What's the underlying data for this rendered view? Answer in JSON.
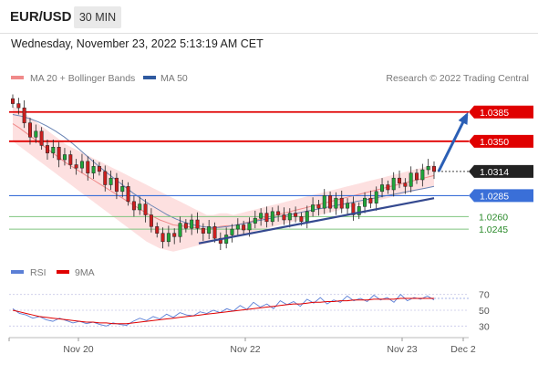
{
  "header": {
    "symbol": "EUR/USD",
    "timeframe": "30 MIN",
    "datetime": "Wednesday, November 23, 2022 5:13:19 AM CET"
  },
  "legend": {
    "ma20_label": "MA 20 + Bollinger Bands",
    "ma50_label": "MA 50",
    "copyright": "Research © 2022 Trading Central",
    "ma20_color": "#f08a8a",
    "ma50_color": "#2f5aa0"
  },
  "rsi_legend": {
    "rsi_label": "RSI",
    "ma9_label": "9MA",
    "rsi_color": "#5b7fd6",
    "ma9_color": "#e00000"
  },
  "chart_data": [
    {
      "type": "candlestick",
      "title": "",
      "ylim": [
        1.0208,
        1.0412
      ],
      "x_ticks": [
        "Nov 20",
        "Nov 22",
        "Nov 23",
        "Dec 2"
      ],
      "levels": [
        {
          "value": "1.0385",
          "kind": "resistance",
          "label_style": "red-box",
          "color": "#e00000"
        },
        {
          "value": "1.0350",
          "kind": "resistance",
          "label_style": "red-box",
          "color": "#e00000"
        },
        {
          "value": "1.0314",
          "kind": "last-price",
          "label_style": "dark-box",
          "color": "#222222"
        },
        {
          "value": "1.0285",
          "kind": "pivot",
          "label_style": "blue-box",
          "color": "#3a6fd8"
        },
        {
          "value": "1.0260",
          "kind": "support",
          "label_style": "green-text",
          "color": "#2a8a2a"
        },
        {
          "value": "1.0245",
          "kind": "support",
          "label_style": "green-text",
          "color": "#2a8a2a"
        }
      ],
      "candles_close": [
        1.0395,
        1.039,
        1.0372,
        1.0355,
        1.0362,
        1.0345,
        1.0336,
        1.0343,
        1.0328,
        1.0334,
        1.0322,
        1.0318,
        1.0326,
        1.0312,
        1.032,
        1.0314,
        1.0298,
        1.0306,
        1.029,
        1.0296,
        1.0278,
        1.0268,
        1.0275,
        1.0262,
        1.0248,
        1.024,
        1.023,
        1.024,
        1.0236,
        1.0252,
        1.0246,
        1.0256,
        1.0246,
        1.024,
        1.0248,
        1.0234,
        1.0228,
        1.0238,
        1.0245,
        1.025,
        1.0244,
        1.0252,
        1.0258,
        1.0264,
        1.0254,
        1.0266,
        1.0262,
        1.0256,
        1.0264,
        1.026,
        1.0254,
        1.0266,
        1.0274,
        1.027,
        1.0285,
        1.027,
        1.0282,
        1.027,
        1.0276,
        1.0262,
        1.0272,
        1.0282,
        1.0276,
        1.029,
        1.0298,
        1.0292,
        1.0306,
        1.03,
        1.0296,
        1.0312,
        1.0304,
        1.0316,
        1.032,
        1.0314
      ],
      "bollinger": {
        "upper": [
          1.0392,
          1.0388,
          1.0382,
          1.0376,
          1.037,
          1.0364,
          1.0358,
          1.0352,
          1.0346,
          1.0342,
          1.0338,
          1.0334,
          1.033,
          1.0326,
          1.0322,
          1.0318,
          1.0314,
          1.031,
          1.0306,
          1.0302,
          1.0298,
          1.0294,
          1.029,
          1.0286,
          1.0282,
          1.0278,
          1.0274,
          1.027,
          1.0266,
          1.0262,
          1.0262,
          1.0264,
          1.0264,
          1.0262,
          1.0264,
          1.0266,
          1.0268,
          1.027,
          1.0272,
          1.0274,
          1.0276,
          1.0278,
          1.028,
          1.0282,
          1.0284,
          1.0286,
          1.0288,
          1.029,
          1.0292,
          1.0294,
          1.0296,
          1.0298,
          1.03,
          1.0302,
          1.0304,
          1.0306,
          1.0308,
          1.031,
          1.0312,
          1.0314,
          1.0316,
          1.0318,
          1.032,
          1.0322
        ],
        "lower": [
          1.035,
          1.0344,
          1.0338,
          1.0332,
          1.0326,
          1.032,
          1.0314,
          1.0308,
          1.0302,
          1.0296,
          1.029,
          1.0284,
          1.0278,
          1.0272,
          1.0266,
          1.026,
          1.0254,
          1.0248,
          1.0242,
          1.0236,
          1.023,
          1.0226,
          1.0222,
          1.022,
          1.0218,
          1.022,
          1.0222,
          1.0224,
          1.0226,
          1.0228,
          1.023,
          1.0232,
          1.0234,
          1.0236,
          1.0238,
          1.024,
          1.0242,
          1.0244,
          1.0246,
          1.0248,
          1.025,
          1.0252,
          1.0254,
          1.0256,
          1.0258,
          1.026,
          1.0262,
          1.0264,
          1.0266,
          1.0268,
          1.027,
          1.0272,
          1.0274,
          1.0276,
          1.0278,
          1.028,
          1.0282,
          1.0284,
          1.0286,
          1.0288,
          1.029,
          1.0292,
          1.0294,
          1.0296
        ]
      },
      "ma50": [
        1.0382,
        1.038,
        1.0377,
        1.0373,
        1.0368,
        1.0362,
        1.0355,
        1.0347,
        1.0338,
        1.0329,
        1.032,
        1.0312,
        1.0304,
        1.0296,
        1.0288,
        1.0281,
        1.0274,
        1.0268,
        1.0262,
        1.0257,
        1.0253,
        1.025,
        1.0248,
        1.0247,
        1.0247,
        1.0248,
        1.025,
        1.0252,
        1.0254,
        1.0256,
        1.0258,
        1.026,
        1.0262,
        1.0264,
        1.0266,
        1.0268,
        1.027,
        1.0272,
        1.0274,
        1.0276,
        1.0278,
        1.028,
        1.0282,
        1.0284,
        1.0286,
        1.0288,
        1.029,
        1.0292,
        1.0294,
        1.0296
      ],
      "trendline": [
        [
          1.0228,
          0.205
        ],
        [
          1.0282,
          0.925
        ]
      ],
      "projection": [
        [
          1.0314,
          0.955
        ],
        [
          1.0382,
          1.0
        ]
      ]
    },
    {
      "type": "line",
      "title": "",
      "ylim": [
        20,
        80
      ],
      "y_ticks": [
        "70",
        "50",
        "30"
      ],
      "series": [
        {
          "name": "RSI",
          "values": [
            52,
            46,
            44,
            40,
            42,
            38,
            36,
            40,
            37,
            34,
            36,
            33,
            35,
            32,
            30,
            34,
            32,
            31,
            36,
            40,
            37,
            42,
            39,
            45,
            41,
            47,
            44,
            43,
            48,
            46,
            50,
            47,
            52,
            49,
            56,
            51,
            60,
            54,
            58,
            52,
            62,
            57,
            61,
            55,
            64,
            59,
            66,
            58,
            63,
            60,
            68,
            62,
            65,
            61,
            69,
            63,
            66,
            60,
            70,
            62,
            66,
            64,
            68,
            63
          ]
        },
        {
          "name": "9MA",
          "values": [
            50,
            48,
            46,
            44,
            42,
            41,
            40,
            39,
            38,
            37,
            36,
            35,
            35,
            34,
            34,
            33,
            33,
            33,
            34,
            35,
            36,
            37,
            38,
            39,
            40,
            41,
            42,
            43,
            44,
            45,
            46,
            47,
            48,
            49,
            50,
            51,
            52,
            53,
            54,
            55,
            56,
            57,
            58,
            58,
            59,
            60,
            60,
            61,
            61,
            62,
            62,
            63,
            63,
            63,
            64,
            64,
            64,
            64,
            65,
            65,
            65,
            65,
            65,
            65
          ]
        }
      ]
    }
  ]
}
